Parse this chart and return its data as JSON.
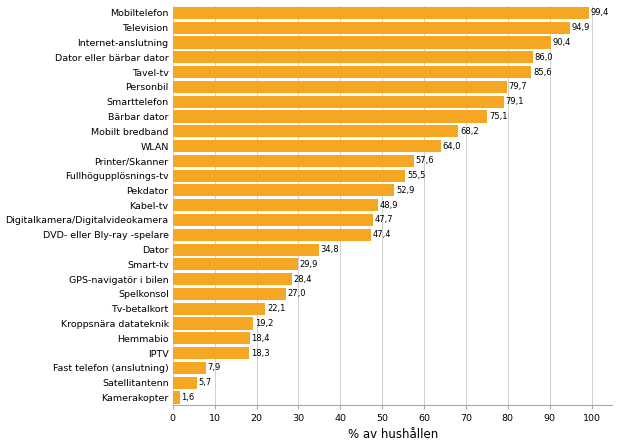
{
  "categories": [
    "Kamerakopter",
    "Satellitantenn",
    "Fast telefon (anslutning)",
    "IPTV",
    "Hemmabio",
    "Kroppsnära datateknik",
    "Tv-betalkort",
    "Spelkonsol",
    "GPS-navigatör i bilen",
    "Smart-tv",
    "Dator",
    "DVD- eller Bly-ray -spelare",
    "Digitalkamera/Digitalvideokamera",
    "Kabel-tv",
    "Pekdator",
    "Fullhögupplösnings-tv",
    "Printer/Skanner",
    "WLAN",
    "Mobilt bredband",
    "Bärbar dator",
    "Smarttelefon",
    "Personbil",
    "Tavel-tv",
    "Dator eller bärbar dator",
    "Internet-anslutning",
    "Television",
    "Mobiltelefon"
  ],
  "values": [
    1.6,
    5.7,
    7.9,
    18.3,
    18.4,
    19.2,
    22.1,
    27.0,
    28.4,
    29.9,
    34.8,
    47.4,
    47.7,
    48.9,
    52.9,
    55.5,
    57.6,
    64.0,
    68.2,
    75.1,
    79.1,
    79.7,
    85.6,
    86.0,
    90.4,
    94.9,
    99.4
  ],
  "bar_color": "#F5A623",
  "xlabel": "% av hushållen",
  "xlim": [
    0,
    105
  ],
  "xticks": [
    0,
    10,
    20,
    30,
    40,
    50,
    60,
    70,
    80,
    90,
    100
  ],
  "grid_color": "#C8C8C8",
  "background_color": "#FFFFFF",
  "value_fontsize": 6.0,
  "label_fontsize": 6.8,
  "xlabel_fontsize": 8.5,
  "bar_height": 0.82,
  "figwidth": 6.18,
  "figheight": 4.47
}
